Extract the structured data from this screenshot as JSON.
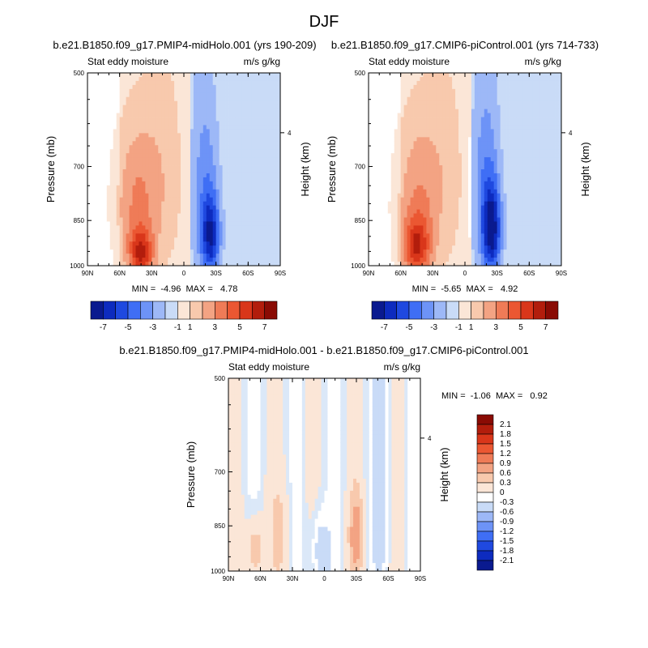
{
  "page_title": "DJF",
  "panels": [
    {
      "title": "b.e21.B1850.f09_g17.PMIP4-midHolo.001 (yrs 190-209)",
      "left_label": "Stat eddy moisture",
      "right_label": "m/s g/kg",
      "min_max_text": "MIN =  -4.96  MAX =   4.78"
    },
    {
      "title": "b.e21.B1850.f09_g17.CMIP6-piControl.001 (yrs 714-733)",
      "left_label": "Stat eddy moisture",
      "right_label": "m/s g/kg",
      "min_max_text": "MIN =  -5.65  MAX =   4.92"
    },
    {
      "title": "b.e21.B1850.f09_g17.PMIP4-midHolo.001 - b.e21.B1850.f09_g17.CMIP6-piControl.001",
      "left_label": "Stat eddy moisture",
      "right_label": "m/s g/kg",
      "min_max_text": "MIN =  -1.06  MAX =   0.92"
    }
  ],
  "axes": {
    "ylabel": "Pressure (mb)",
    "y2label": "Height (km)",
    "y_ticks": [
      "500",
      "700",
      "850",
      "1000"
    ],
    "y2_ticks": [
      "4"
    ],
    "x_ticks": [
      "90N",
      "60N",
      "30N",
      "0",
      "30S",
      "60S",
      "90S"
    ]
  },
  "colorbars": {
    "main": {
      "labels": [
        "-7",
        "-5",
        "-3",
        "-1",
        "1",
        "3",
        "5",
        "7"
      ],
      "colors": [
        "#0a1a8f",
        "#0d2bbf",
        "#1f49e0",
        "#3f6ef5",
        "#6d93f7",
        "#9db8f7",
        "#c9dbf7",
        "#fbe6d7",
        "#f8c9ad",
        "#f3a383",
        "#ef7b57",
        "#eb5732",
        "#d9361a",
        "#b21d0c",
        "#8a0b04"
      ]
    },
    "diff": {
      "labels": [
        "2.1",
        "1.8",
        "1.5",
        "1.2",
        "0.9",
        "0.6",
        "0.3",
        "0",
        "-0.3",
        "-0.6",
        "-0.9",
        "-1.2",
        "-1.5",
        "-1.8",
        "-2.1"
      ],
      "colors": [
        "#8a0b04",
        "#b21d0c",
        "#d9361a",
        "#eb5732",
        "#ef7b57",
        "#f3a383",
        "#f8c9ad",
        "#fbe6d7",
        "#ffffff",
        "#c9dbf7",
        "#9db8f7",
        "#6d93f7",
        "#3f6ef5",
        "#1f49e0",
        "#0d2bbf",
        "#0a1a8f"
      ]
    }
  },
  "chart_data": [
    {
      "type": "heatmap",
      "title": "b.e21.B1850.f09_g17.PMIP4-midHolo.001 (yrs 190-209)",
      "variable": "Stat eddy moisture",
      "units": "m/s g/kg",
      "xlabel": "",
      "ylabel": "Pressure (mb)",
      "y2label": "Height (km)",
      "xlim": [
        90,
        -90
      ],
      "ylim": [
        1000,
        500
      ],
      "y_scale": "log-pressure",
      "min": -4.96,
      "max": 4.78,
      "contour_levels": [
        -7,
        -6,
        -5,
        -4,
        -3,
        -2,
        -1,
        0,
        1,
        2,
        3,
        4,
        5,
        6,
        7
      ],
      "features": [
        {
          "lat": 40,
          "p": 960,
          "value": 4.5,
          "sigma_lat": 8,
          "sigma_p": 60
        },
        {
          "lat": 45,
          "p": 800,
          "value": 2.5,
          "sigma_lat": 14,
          "sigma_p": 150
        },
        {
          "lat": 20,
          "p": 720,
          "value": 1.2,
          "sigma_lat": 15,
          "sigma_p": 200
        },
        {
          "lat": -25,
          "p": 900,
          "value": -4.8,
          "sigma_lat": 6,
          "sigma_p": 90
        },
        {
          "lat": -20,
          "p": 750,
          "value": -2.0,
          "sigma_lat": 9,
          "sigma_p": 180
        }
      ]
    },
    {
      "type": "heatmap",
      "title": "b.e21.B1850.f09_g17.CMIP6-piControl.001 (yrs 714-733)",
      "variable": "Stat eddy moisture",
      "units": "m/s g/kg",
      "xlabel": "",
      "ylabel": "Pressure (mb)",
      "y2label": "Height (km)",
      "xlim": [
        90,
        -90
      ],
      "ylim": [
        1000,
        500
      ],
      "y_scale": "log-pressure",
      "min": -5.65,
      "max": 4.92,
      "contour_levels": [
        -7,
        -6,
        -5,
        -4,
        -3,
        -2,
        -1,
        0,
        1,
        2,
        3,
        4,
        5,
        6,
        7
      ],
      "features": [
        {
          "lat": 45,
          "p": 940,
          "value": 4.5,
          "sigma_lat": 9,
          "sigma_p": 70
        },
        {
          "lat": 45,
          "p": 790,
          "value": 2.3,
          "sigma_lat": 14,
          "sigma_p": 150
        },
        {
          "lat": 20,
          "p": 720,
          "value": 1.1,
          "sigma_lat": 15,
          "sigma_p": 200
        },
        {
          "lat": -25,
          "p": 880,
          "value": -5.5,
          "sigma_lat": 6,
          "sigma_p": 95
        },
        {
          "lat": -20,
          "p": 740,
          "value": -2.2,
          "sigma_lat": 9,
          "sigma_p": 180
        }
      ]
    },
    {
      "type": "heatmap",
      "title": "b.e21.B1850.f09_g17.PMIP4-midHolo.001 - b.e21.B1850.f09_g17.CMIP6-piControl.001",
      "variable": "Stat eddy moisture",
      "units": "m/s g/kg",
      "xlabel": "",
      "ylabel": "Pressure (mb)",
      "y2label": "Height (km)",
      "xlim": [
        90,
        -90
      ],
      "ylim": [
        1000,
        500
      ],
      "y_scale": "log-pressure",
      "min": -1.06,
      "max": 0.92,
      "contour_levels": [
        -2.1,
        -1.8,
        -1.5,
        -1.2,
        -0.9,
        -0.6,
        -0.3,
        0,
        0.3,
        0.6,
        0.9,
        1.2,
        1.5,
        1.8,
        2.1
      ],
      "features": [
        {
          "lat": 65,
          "p": 930,
          "value": 0.7,
          "sigma_lat": 6,
          "sigma_p": 80
        },
        {
          "lat": -30,
          "p": 880,
          "value": 0.75,
          "sigma_lat": 5,
          "sigma_p": 90
        },
        {
          "lat": 40,
          "p": 880,
          "value": 0.35,
          "sigma_lat": 7,
          "sigma_p": 120
        },
        {
          "lat": 5,
          "p": 930,
          "value": -0.5,
          "sigma_lat": 6,
          "sigma_p": 100
        },
        {
          "lat": -55,
          "p": 700,
          "value": -0.4,
          "sigma_lat": 5,
          "sigma_p": 250
        }
      ]
    }
  ]
}
